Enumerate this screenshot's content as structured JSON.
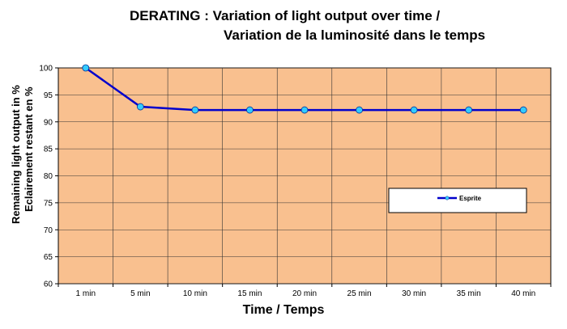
{
  "chart_data": {
    "type": "line",
    "title_lines": [
      "DERATING : Variation of light output over time /",
      "Variation de la luminosité dans le temps"
    ],
    "xlabel": "Time / Temps",
    "ylabel_lines": [
      "Remaining light output in %",
      "Eclairement restant en %"
    ],
    "categories": [
      "1 min",
      "5 min",
      "10 min",
      "15 min",
      "20 min",
      "25 min",
      "30 min",
      "35 min",
      "40 min"
    ],
    "series": [
      {
        "name": "Esprite",
        "values": [
          100,
          92.8,
          92.2,
          92.2,
          92.2,
          92.2,
          92.2,
          92.2,
          92.2
        ],
        "color": "#0000cc",
        "marker_color": "#33ccff"
      }
    ],
    "ylim": [
      60,
      100
    ],
    "yticks": [
      60,
      65,
      70,
      75,
      80,
      85,
      90,
      95,
      100
    ],
    "grid": true,
    "plot_background": "#f9c08f",
    "legend_position": "right-middle"
  }
}
